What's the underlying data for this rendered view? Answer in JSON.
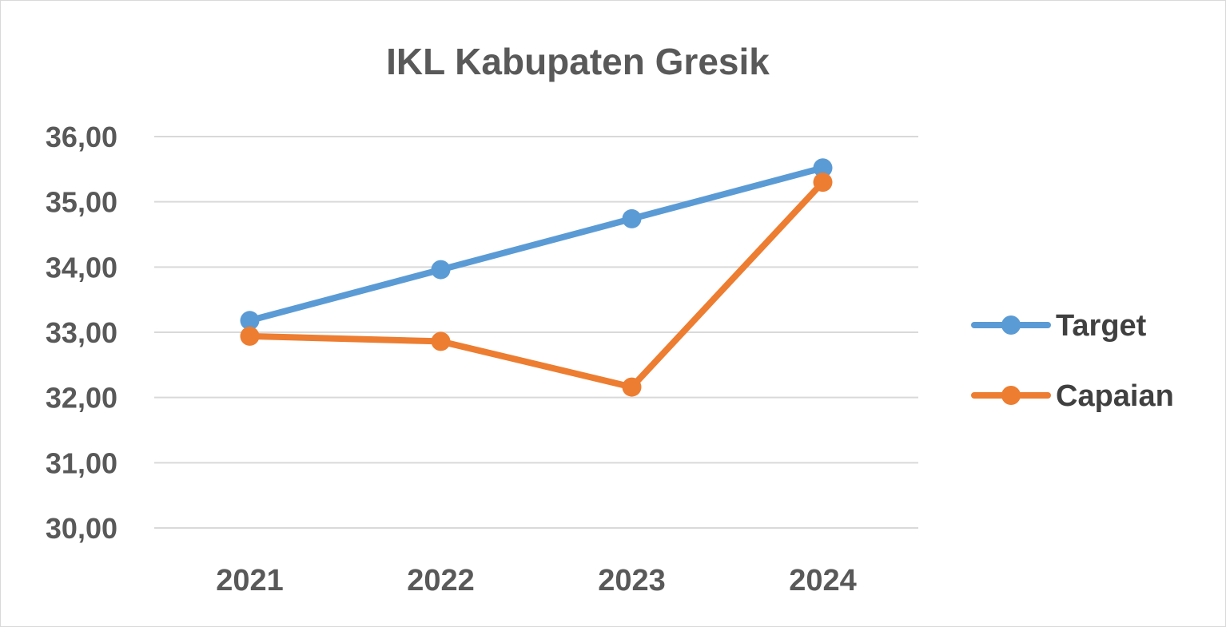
{
  "chart_data": {
    "type": "line",
    "title": "IKL Kabupaten Gresik",
    "xlabel": "",
    "ylabel": "",
    "categories": [
      "2021",
      "2022",
      "2023",
      "2024"
    ],
    "ylim": [
      30,
      36
    ],
    "y_ticks": [
      "30,00",
      "31,00",
      "32,00",
      "33,00",
      "34,00",
      "35,00",
      "36,00"
    ],
    "y_tick_values": [
      30,
      31,
      32,
      33,
      34,
      35,
      36
    ],
    "grid": true,
    "legend_position": "right",
    "series": [
      {
        "name": "Target",
        "color": "#5b9bd5",
        "values": [
          33.18,
          33.96,
          34.74,
          35.52
        ]
      },
      {
        "name": "Capaian",
        "color": "#ed7d31",
        "values": [
          32.94,
          32.86,
          32.16,
          35.3
        ]
      }
    ]
  }
}
